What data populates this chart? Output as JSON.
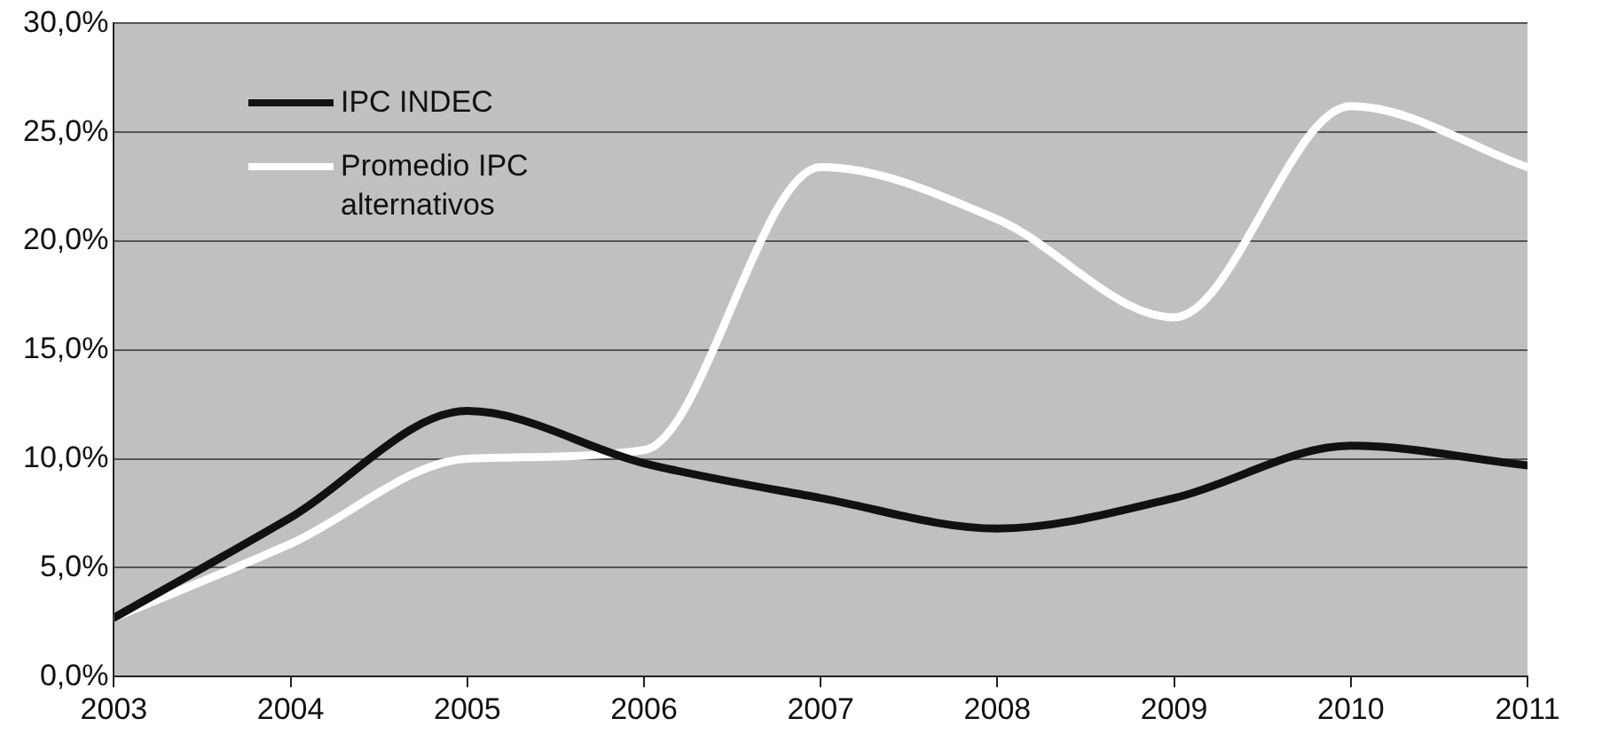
{
  "chart_data": {
    "type": "line",
    "x": [
      2003,
      2004,
      2005,
      2006,
      2007,
      2008,
      2009,
      2010,
      2011
    ],
    "series": [
      {
        "name": "IPC INDEC",
        "color": "#111111",
        "values": [
          2.7,
          7.3,
          12.2,
          9.8,
          8.2,
          6.8,
          8.2,
          10.6,
          9.7
        ]
      },
      {
        "name": "Promedio IPC alternativos",
        "color": "#ffffff",
        "values": [
          2.7,
          6.1,
          10.0,
          10.4,
          23.4,
          21.0,
          16.5,
          26.2,
          23.4
        ]
      }
    ],
    "xlim": [
      2003,
      2011
    ],
    "xticks": [
      2003,
      2004,
      2005,
      2006,
      2007,
      2008,
      2009,
      2010,
      2011
    ],
    "ylim": [
      0,
      30
    ],
    "yticks": [
      {
        "value": 0,
        "label": "0,0%"
      },
      {
        "value": 5,
        "label": "5,0%"
      },
      {
        "value": 10,
        "label": "10,0%"
      },
      {
        "value": 15,
        "label": "15,0%"
      },
      {
        "value": 20,
        "label": "20,0%"
      },
      {
        "value": 25,
        "label": "25,0%"
      },
      {
        "value": 30,
        "label": "30,0%"
      }
    ],
    "grid": "y",
    "legend": "top left",
    "marker": "none",
    "line_style": "solid"
  }
}
